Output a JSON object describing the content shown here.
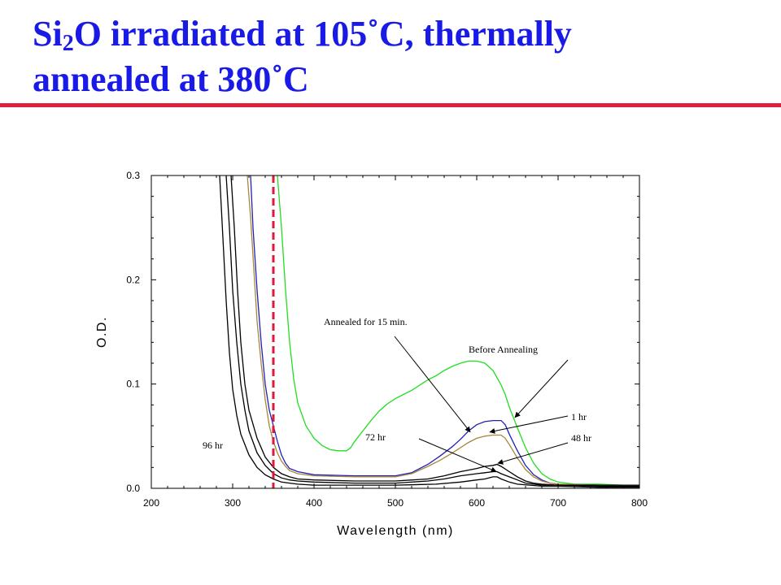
{
  "slide": {
    "title_line1_part1": "Si",
    "title_subscript": "2",
    "title_line1_part2": "O irradiated at 105˚C, thermally",
    "title_line2": "annealed at 380˚C",
    "accent_rule_color": "#e0203a",
    "title_color": "#1a1ae6"
  },
  "chart_data": {
    "type": "line",
    "xlabel": "Wavelength (nm)",
    "ylabel": "O.D.",
    "xlim": [
      200,
      800
    ],
    "ylim": [
      0,
      0.3
    ],
    "x_ticks": [
      200,
      300,
      400,
      500,
      600,
      700,
      800
    ],
    "y_ticks": [
      0.0,
      0.1,
      0.2,
      0.3
    ],
    "x_tick_labels": [
      "200",
      "300",
      "400",
      "500",
      "600",
      "700",
      "800"
    ],
    "y_tick_labels": [
      "0.0",
      "0.1",
      "0.2",
      "0.3"
    ],
    "grid": false,
    "reference_line": {
      "x": 350,
      "color": "#dd1a3a",
      "style": "dashed"
    },
    "annotations": [
      {
        "text": "Annealed for 15 min.",
        "target": [
          592,
          0.054
        ]
      },
      {
        "text": "Before Annealing",
        "target": [
          647,
          0.068
        ]
      },
      {
        "text": "1 hr",
        "target": [
          616,
          0.054
        ]
      },
      {
        "text": "72 hr",
        "target": [
          624,
          0.016
        ]
      },
      {
        "text": "48 hr",
        "target": [
          626,
          0.024
        ]
      },
      {
        "text": "96 hr",
        "target": [
          "",
          ""
        ]
      }
    ],
    "series": [
      {
        "name": "Before Annealing",
        "color": "#22dd22",
        "x": [
          355,
          360,
          365,
          370,
          375,
          380,
          390,
          400,
          410,
          420,
          430,
          440,
          445,
          450,
          460,
          470,
          480,
          490,
          500,
          510,
          520,
          530,
          540,
          550,
          560,
          570,
          580,
          590,
          600,
          610,
          620,
          630,
          635,
          640,
          650,
          660,
          670,
          680,
          690,
          700,
          720,
          750,
          780,
          800
        ],
        "y": [
          0.3,
          0.25,
          0.19,
          0.14,
          0.105,
          0.082,
          0.06,
          0.048,
          0.041,
          0.037,
          0.036,
          0.036,
          0.039,
          0.045,
          0.055,
          0.065,
          0.074,
          0.081,
          0.086,
          0.09,
          0.094,
          0.099,
          0.104,
          0.108,
          0.113,
          0.117,
          0.12,
          0.122,
          0.122,
          0.12,
          0.113,
          0.099,
          0.09,
          0.078,
          0.058,
          0.039,
          0.024,
          0.014,
          0.009,
          0.006,
          0.004,
          0.004,
          0.003,
          0.003
        ]
      },
      {
        "name": "Annealed for 15 min.",
        "color": "#2020b8",
        "x": [
          322,
          325,
          330,
          335,
          340,
          345,
          350,
          355,
          360,
          365,
          370,
          380,
          400,
          450,
          500,
          520,
          540,
          555,
          570,
          580,
          590,
          600,
          610,
          620,
          630,
          635,
          640,
          650,
          660,
          670,
          680,
          690,
          700,
          750,
          800
        ],
        "y": [
          0.3,
          0.25,
          0.19,
          0.14,
          0.1,
          0.075,
          0.06,
          0.045,
          0.032,
          0.024,
          0.019,
          0.016,
          0.013,
          0.012,
          0.012,
          0.015,
          0.023,
          0.031,
          0.04,
          0.047,
          0.055,
          0.061,
          0.064,
          0.065,
          0.065,
          0.061,
          0.052,
          0.036,
          0.022,
          0.013,
          0.008,
          0.005,
          0.004,
          0.003,
          0.003
        ]
      },
      {
        "name": "1 hr",
        "color": "#a8863a",
        "x": [
          318,
          322,
          326,
          330,
          335,
          340,
          345,
          350,
          355,
          360,
          365,
          370,
          380,
          400,
          450,
          500,
          520,
          540,
          555,
          570,
          580,
          590,
          600,
          610,
          620,
          630,
          635,
          640,
          650,
          660,
          670,
          680,
          690,
          700,
          750,
          800
        ],
        "y": [
          0.3,
          0.26,
          0.21,
          0.16,
          0.12,
          0.085,
          0.06,
          0.045,
          0.034,
          0.026,
          0.021,
          0.017,
          0.014,
          0.012,
          0.011,
          0.011,
          0.014,
          0.021,
          0.027,
          0.034,
          0.039,
          0.044,
          0.048,
          0.05,
          0.051,
          0.051,
          0.048,
          0.042,
          0.029,
          0.018,
          0.011,
          0.007,
          0.005,
          0.004,
          0.003,
          0.003
        ]
      },
      {
        "name": "48 hr",
        "color": "#000000",
        "x": [
          298,
          302,
          306,
          310,
          315,
          320,
          330,
          340,
          350,
          360,
          370,
          380,
          400,
          450,
          500,
          540,
          560,
          580,
          600,
          610,
          620,
          625,
          630,
          640,
          650,
          660,
          670,
          680,
          700,
          750,
          800
        ],
        "y": [
          0.3,
          0.25,
          0.19,
          0.14,
          0.1,
          0.075,
          0.048,
          0.03,
          0.02,
          0.014,
          0.011,
          0.009,
          0.008,
          0.007,
          0.007,
          0.009,
          0.012,
          0.016,
          0.019,
          0.021,
          0.022,
          0.023,
          0.021,
          0.016,
          0.011,
          0.007,
          0.005,
          0.004,
          0.003,
          0.003,
          0.003
        ]
      },
      {
        "name": "72 hr",
        "color": "#000000",
        "x": [
          292,
          296,
          300,
          305,
          310,
          315,
          320,
          330,
          340,
          350,
          360,
          370,
          380,
          400,
          450,
          500,
          540,
          560,
          580,
          600,
          610,
          620,
          625,
          630,
          640,
          650,
          660,
          680,
          700,
          750,
          800
        ],
        "y": [
          0.3,
          0.25,
          0.19,
          0.14,
          0.1,
          0.075,
          0.055,
          0.034,
          0.022,
          0.014,
          0.01,
          0.008,
          0.007,
          0.006,
          0.005,
          0.005,
          0.007,
          0.009,
          0.012,
          0.014,
          0.015,
          0.016,
          0.016,
          0.014,
          0.011,
          0.008,
          0.005,
          0.003,
          0.003,
          0.002,
          0.002
        ]
      },
      {
        "name": "96 hr",
        "color": "#000000",
        "x": [
          284,
          288,
          292,
          296,
          300,
          305,
          310,
          320,
          330,
          340,
          350,
          360,
          370,
          380,
          400,
          450,
          500,
          550,
          580,
          600,
          610,
          620,
          625,
          630,
          640,
          650,
          680,
          700,
          750,
          800
        ],
        "y": [
          0.3,
          0.24,
          0.18,
          0.13,
          0.095,
          0.07,
          0.052,
          0.032,
          0.02,
          0.013,
          0.009,
          0.006,
          0.005,
          0.004,
          0.003,
          0.003,
          0.003,
          0.004,
          0.006,
          0.008,
          0.009,
          0.011,
          0.011,
          0.009,
          0.006,
          0.004,
          0.002,
          0.002,
          0.001,
          0.001
        ]
      }
    ]
  }
}
